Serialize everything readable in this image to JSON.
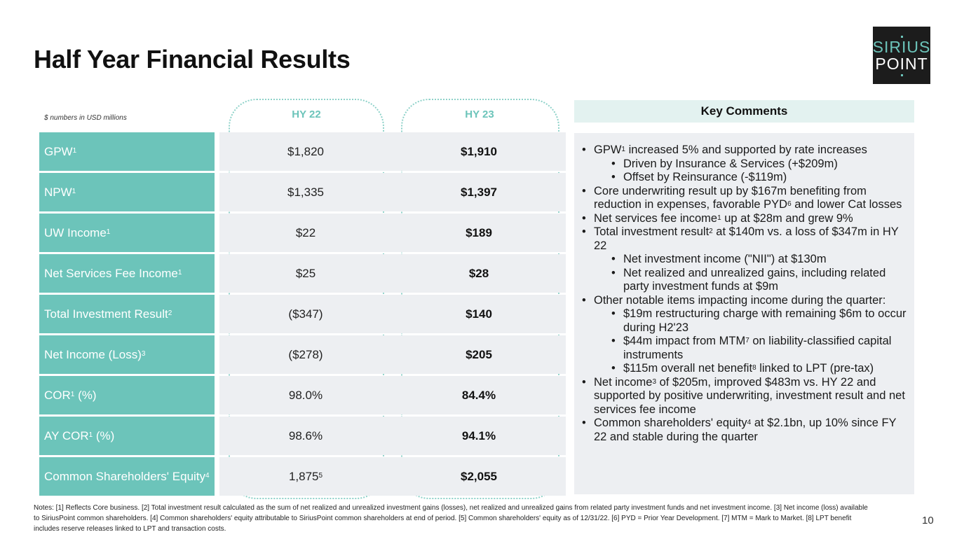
{
  "title": "Half Year Financial Results",
  "logo": {
    "line1": "SIRIUS",
    "line2": "POINT"
  },
  "table": {
    "units_note": "$ numbers in USD millions",
    "col1_header": "HY 22",
    "col2_header": "HY 23",
    "rows": [
      {
        "label": "GPW",
        "label_sup": "1",
        "hy22": "$1,820",
        "hy22_sup": "",
        "hy23": "$1,910"
      },
      {
        "label": "NPW",
        "label_sup": "1",
        "hy22": "$1,335",
        "hy22_sup": "",
        "hy23": "$1,397"
      },
      {
        "label": "UW Income",
        "label_sup": "1",
        "hy22": "$22",
        "hy22_sup": "",
        "hy23": "$189"
      },
      {
        "label": "Net Services Fee Income",
        "label_sup": "1",
        "hy22": "$25",
        "hy22_sup": "",
        "hy23": "$28"
      },
      {
        "label": "Total Investment Result",
        "label_sup": "2",
        "hy22": "($347)",
        "hy22_sup": "",
        "hy23": "$140"
      },
      {
        "label": "Net Income (Loss)",
        "label_sup": "3",
        "hy22": "($278)",
        "hy22_sup": "",
        "hy23": "$205"
      },
      {
        "label": "COR",
        "label_sup": "1",
        "label_suffix": " (%)",
        "hy22": "98.0%",
        "hy22_sup": "",
        "hy23": "84.4%"
      },
      {
        "label": "AY COR",
        "label_sup": "1",
        "label_suffix": " (%)",
        "hy22": "98.6%",
        "hy22_sup": "",
        "hy23": "94.1%"
      },
      {
        "label": "Common Shareholders' Equity",
        "label_sup": "4",
        "hy22": "1,875",
        "hy22_sup": "5",
        "hy23": "$2,055"
      }
    ]
  },
  "key_comments": {
    "header": "Key Comments",
    "bullets": [
      {
        "level": 1,
        "parts": [
          "GPW",
          "1",
          " increased 5% and supported by rate increases"
        ]
      },
      {
        "level": 2,
        "parts": [
          "Driven by Insurance & Services (+$209m)"
        ]
      },
      {
        "level": 2,
        "parts": [
          "Offset by Reinsurance (-$119m)"
        ]
      },
      {
        "level": 1,
        "parts": [
          "Core underwriting result up by $167m benefiting from reduction in expenses, favorable PYD",
          "6",
          " and lower Cat losses"
        ]
      },
      {
        "level": 1,
        "parts": [
          "Net services fee income",
          "1",
          " up at $28m and grew 9%"
        ]
      },
      {
        "level": 1,
        "parts": [
          "Total investment result",
          "2",
          " at $140m vs. a loss of $347m in HY 22"
        ]
      },
      {
        "level": 2,
        "parts": [
          "Net investment income (\"NII\") at $130m"
        ]
      },
      {
        "level": 2,
        "parts": [
          "Net realized and unrealized gains, including related party investment funds at $9m"
        ]
      },
      {
        "level": 1,
        "parts": [
          "Other notable items impacting income during the quarter:"
        ]
      },
      {
        "level": 2,
        "parts": [
          "$19m restructuring charge with remaining $6m to occur during H2'23"
        ]
      },
      {
        "level": 2,
        "parts": [
          "$44m impact from MTM",
          "7",
          " on liability-classified capital instruments"
        ]
      },
      {
        "level": 2,
        "parts": [
          "$115m overall net benefit",
          "8",
          " linked to LPT (pre-tax)"
        ]
      },
      {
        "level": 1,
        "parts": [
          "Net income",
          "3",
          " of $205m, improved $483m vs. HY 22 and supported by positive underwriting, investment result and net services fee income"
        ]
      },
      {
        "level": 1,
        "parts": [
          "Common shareholders' equity",
          "4",
          " at $2.1bn, up 10% since FY 22 and stable during the quarter"
        ]
      }
    ]
  },
  "footnotes": "Notes: [1] Reflects Core business. [2] Total investment result calculated as the sum of net realized and unrealized investment gains (losses), net realized and unrealized gains from related party investment funds and net investment income. [3] Net income (loss) available to SiriusPoint common shareholders. [4] Common shareholders' equity attributable to SiriusPoint common shareholders at end of period. [5] Common shareholders' equity as of 12/31/22. [6] PYD = Prior Year Development. [7] MTM = Mark to Market. [8] LPT benefit includes reserve releases linked to LPT and transaction costs.",
  "page_number": "10",
  "colors": {
    "teal": "#6cc4ba",
    "light_teal": "#e3f2f0",
    "grey_panel": "#edeff2",
    "logo_bg": "#1c1c1c"
  }
}
